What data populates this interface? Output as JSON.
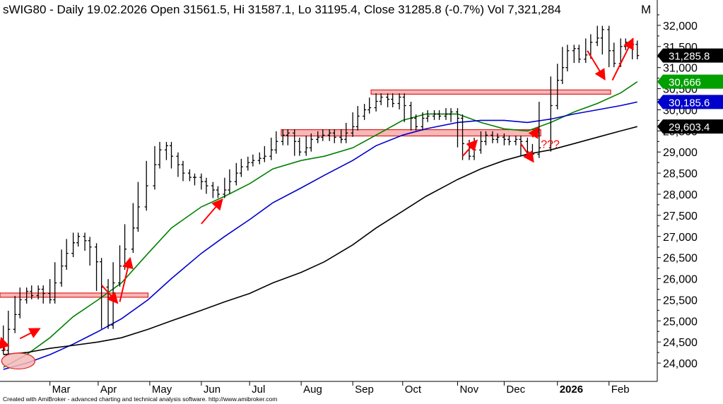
{
  "chart_data": {
    "type": "line",
    "title": "sWIG80 - Daily 19.02.2026 Open 31561.5, Hi 31587.1, Lo 31195.4, Close 31285.8 (-0.7%) Vol 7,321,284",
    "title_marker": "M",
    "title_marker_color": "#00a000",
    "ylim": [
      23650,
      32300
    ],
    "y_ticks": [
      {
        "value": 24000,
        "label": "24,000"
      },
      {
        "value": 24500,
        "label": "24,500"
      },
      {
        "value": 25000,
        "label": "25,000"
      },
      {
        "value": 25500,
        "label": "25,500"
      },
      {
        "value": 26000,
        "label": "26,000"
      },
      {
        "value": 26500,
        "label": "26,500"
      },
      {
        "value": 27000,
        "label": "27,000"
      },
      {
        "value": 27500,
        "label": "27,500"
      },
      {
        "value": 28000,
        "label": "28,000"
      },
      {
        "value": 28500,
        "label": "28,500"
      },
      {
        "value": 29000,
        "label": "29,000"
      },
      {
        "value": 29500,
        "label": "29,500"
      },
      {
        "value": 30000,
        "label": "30,000"
      },
      {
        "value": 30500,
        "label": "30,500"
      },
      {
        "value": 31000,
        "label": "31,000"
      },
      {
        "value": 31500,
        "label": "31,500"
      },
      {
        "value": 32000,
        "label": "32,000"
      }
    ],
    "xlim": [
      "2025-02-01",
      "2026-03-03"
    ],
    "x_ticks": [
      {
        "date": "2025-03-03",
        "label": "Mar"
      },
      {
        "date": "2025-04-01",
        "label": "Apr"
      },
      {
        "date": "2025-05-02",
        "label": "May"
      },
      {
        "date": "2025-06-02",
        "label": "Jun"
      },
      {
        "date": "2025-07-01",
        "label": "Jul"
      },
      {
        "date": "2025-08-01",
        "label": "Aug"
      },
      {
        "date": "2025-09-01",
        "label": "Sep"
      },
      {
        "date": "2025-10-01",
        "label": "Oct"
      },
      {
        "date": "2025-11-03",
        "label": "Nov"
      },
      {
        "date": "2025-12-01",
        "label": "Dec"
      },
      {
        "date": "2026-01-02",
        "label": "2026",
        "bold": true
      },
      {
        "date": "2026-02-02",
        "label": "Feb"
      }
    ],
    "price": [
      [
        "2025-02-03",
        24300
      ],
      [
        "2025-02-06",
        24800
      ],
      [
        "2025-02-10",
        25150
      ],
      [
        "2025-02-13",
        25500
      ],
      [
        "2025-02-17",
        25700
      ],
      [
        "2025-02-20",
        25600
      ],
      [
        "2025-02-24",
        25750
      ],
      [
        "2025-02-27",
        25650
      ],
      [
        "2025-03-03",
        25500
      ],
      [
        "2025-03-06",
        25900
      ],
      [
        "2025-03-10",
        26300
      ],
      [
        "2025-03-13",
        26600
      ],
      [
        "2025-03-17",
        26850
      ],
      [
        "2025-03-20",
        27000
      ],
      [
        "2025-03-24",
        26900
      ],
      [
        "2025-03-27",
        26750
      ],
      [
        "2025-03-31",
        26400
      ],
      [
        "2025-04-03",
        25800
      ],
      [
        "2025-04-07",
        24900
      ],
      [
        "2025-04-10",
        25900
      ],
      [
        "2025-04-14",
        26300
      ],
      [
        "2025-04-17",
        26700
      ],
      [
        "2025-04-22",
        27200
      ],
      [
        "2025-04-25",
        27700
      ],
      [
        "2025-04-30",
        28200
      ],
      [
        "2025-05-05",
        28700
      ],
      [
        "2025-05-08",
        29050
      ],
      [
        "2025-05-12",
        29150
      ],
      [
        "2025-05-15",
        28900
      ],
      [
        "2025-05-19",
        28700
      ],
      [
        "2025-05-22",
        28500
      ],
      [
        "2025-05-26",
        28400
      ],
      [
        "2025-05-29",
        28400
      ],
      [
        "2025-06-02",
        28300
      ],
      [
        "2025-06-05",
        28200
      ],
      [
        "2025-06-09",
        28100
      ],
      [
        "2025-06-12",
        28000
      ],
      [
        "2025-06-16",
        28100
      ],
      [
        "2025-06-19",
        28300
      ],
      [
        "2025-06-23",
        28500
      ],
      [
        "2025-06-26",
        28650
      ],
      [
        "2025-06-30",
        28750
      ],
      [
        "2025-07-03",
        28800
      ],
      [
        "2025-07-07",
        28850
      ],
      [
        "2025-07-10",
        28900
      ],
      [
        "2025-07-14",
        29050
      ],
      [
        "2025-07-17",
        29250
      ],
      [
        "2025-07-21",
        29400
      ],
      [
        "2025-07-24",
        29450
      ],
      [
        "2025-07-28",
        29250
      ],
      [
        "2025-07-31",
        29000
      ],
      [
        "2025-08-04",
        29100
      ],
      [
        "2025-08-07",
        29300
      ],
      [
        "2025-08-11",
        29350
      ],
      [
        "2025-08-14",
        29400
      ],
      [
        "2025-08-18",
        29450
      ],
      [
        "2025-08-21",
        29350
      ],
      [
        "2025-08-25",
        29300
      ],
      [
        "2025-08-28",
        29450
      ],
      [
        "2025-09-01",
        29600
      ],
      [
        "2025-09-04",
        29850
      ],
      [
        "2025-09-08",
        30000
      ],
      [
        "2025-09-11",
        30050
      ],
      [
        "2025-09-15",
        30200
      ],
      [
        "2025-09-18",
        30300
      ],
      [
        "2025-09-22",
        30250
      ],
      [
        "2025-09-25",
        30150
      ],
      [
        "2025-09-29",
        30300
      ],
      [
        "2025-10-02",
        30100
      ],
      [
        "2025-10-06",
        29800
      ],
      [
        "2025-10-09",
        29600
      ],
      [
        "2025-10-13",
        29800
      ],
      [
        "2025-10-16",
        29850
      ],
      [
        "2025-10-20",
        29900
      ],
      [
        "2025-10-23",
        29850
      ],
      [
        "2025-10-27",
        29900
      ],
      [
        "2025-10-30",
        29950
      ],
      [
        "2025-11-03",
        29800
      ],
      [
        "2025-11-06",
        29200
      ],
      [
        "2025-11-10",
        28900
      ],
      [
        "2025-11-13",
        29050
      ],
      [
        "2025-11-17",
        29250
      ],
      [
        "2025-11-20",
        29400
      ],
      [
        "2025-11-24",
        29300
      ],
      [
        "2025-11-27",
        29350
      ],
      [
        "2025-12-01",
        29300
      ],
      [
        "2025-12-04",
        29250
      ],
      [
        "2025-12-08",
        29300
      ],
      [
        "2025-12-11",
        29250
      ],
      [
        "2025-12-15",
        29000
      ],
      [
        "2025-12-18",
        28950
      ],
      [
        "2025-12-22",
        29100
      ],
      [
        "2025-12-29",
        30100
      ],
      [
        "2026-01-02",
        30700
      ],
      [
        "2026-01-05",
        31000
      ],
      [
        "2026-01-08",
        31400
      ],
      [
        "2026-01-12",
        31450
      ],
      [
        "2026-01-15",
        31200
      ],
      [
        "2026-01-19",
        31300
      ],
      [
        "2026-01-22",
        31600
      ],
      [
        "2026-01-26",
        31700
      ],
      [
        "2026-01-29",
        31900
      ],
      [
        "2026-02-02",
        31400
      ],
      [
        "2026-02-05",
        31100
      ],
      [
        "2026-02-09",
        31500
      ],
      [
        "2026-02-12",
        31600
      ],
      [
        "2026-02-16",
        31550
      ],
      [
        "2026-02-19",
        31285.8
      ]
    ],
    "series": [
      {
        "name": "",
        "color": "#008000",
        "last_label": "30,666",
        "points": [
          [
            "2025-02-03",
            23900
          ],
          [
            "2025-02-17",
            24200
          ],
          [
            "2025-03-03",
            24600
          ],
          [
            "2025-03-17",
            25100
          ],
          [
            "2025-04-01",
            25500
          ],
          [
            "2025-04-15",
            25900
          ],
          [
            "2025-05-01",
            26600
          ],
          [
            "2025-05-15",
            27200
          ],
          [
            "2025-06-02",
            27700
          ],
          [
            "2025-06-16",
            27950
          ],
          [
            "2025-07-01",
            28250
          ],
          [
            "2025-07-15",
            28600
          ],
          [
            "2025-08-01",
            28800
          ],
          [
            "2025-08-15",
            28900
          ],
          [
            "2025-09-01",
            29100
          ],
          [
            "2025-09-15",
            29400
          ],
          [
            "2025-10-01",
            29750
          ],
          [
            "2025-10-15",
            29900
          ],
          [
            "2025-11-03",
            29900
          ],
          [
            "2025-11-17",
            29700
          ],
          [
            "2025-12-01",
            29550
          ],
          [
            "2025-12-15",
            29500
          ],
          [
            "2025-12-29",
            29700
          ],
          [
            "2026-01-12",
            29950
          ],
          [
            "2026-01-26",
            30150
          ],
          [
            "2026-02-09",
            30400
          ],
          [
            "2026-02-19",
            30666
          ]
        ]
      },
      {
        "name": "",
        "color": "#0000cc",
        "last_label": "30,185.6",
        "points": [
          [
            "2025-02-03",
            23850
          ],
          [
            "2025-02-17",
            24000
          ],
          [
            "2025-03-03",
            24200
          ],
          [
            "2025-03-17",
            24450
          ],
          [
            "2025-04-01",
            24750
          ],
          [
            "2025-04-15",
            25050
          ],
          [
            "2025-05-01",
            25500
          ],
          [
            "2025-05-15",
            26000
          ],
          [
            "2025-06-02",
            26600
          ],
          [
            "2025-06-16",
            27000
          ],
          [
            "2025-07-01",
            27400
          ],
          [
            "2025-07-15",
            27800
          ],
          [
            "2025-08-01",
            28150
          ],
          [
            "2025-08-15",
            28450
          ],
          [
            "2025-09-01",
            28800
          ],
          [
            "2025-09-15",
            29150
          ],
          [
            "2025-10-01",
            29400
          ],
          [
            "2025-10-15",
            29550
          ],
          [
            "2025-11-03",
            29700
          ],
          [
            "2025-11-17",
            29750
          ],
          [
            "2025-12-01",
            29750
          ],
          [
            "2025-12-15",
            29700
          ],
          [
            "2025-12-29",
            29780
          ],
          [
            "2026-01-12",
            29900
          ],
          [
            "2026-01-26",
            30000
          ],
          [
            "2026-02-09",
            30100
          ],
          [
            "2026-02-19",
            30185.6
          ]
        ]
      },
      {
        "name": "",
        "color": "#000000",
        "last_label": "29,603.4",
        "points": [
          [
            "2025-02-03",
            24200
          ],
          [
            "2025-02-17",
            24250
          ],
          [
            "2025-03-03",
            24350
          ],
          [
            "2025-03-17",
            24420
          ],
          [
            "2025-04-01",
            24500
          ],
          [
            "2025-04-15",
            24600
          ],
          [
            "2025-05-01",
            24800
          ],
          [
            "2025-05-15",
            25000
          ],
          [
            "2025-06-02",
            25250
          ],
          [
            "2025-06-16",
            25450
          ],
          [
            "2025-07-01",
            25650
          ],
          [
            "2025-07-15",
            25900
          ],
          [
            "2025-08-01",
            26150
          ],
          [
            "2025-08-15",
            26400
          ],
          [
            "2025-09-01",
            26800
          ],
          [
            "2025-09-15",
            27200
          ],
          [
            "2025-10-01",
            27600
          ],
          [
            "2025-10-15",
            27950
          ],
          [
            "2025-11-03",
            28350
          ],
          [
            "2025-11-17",
            28600
          ],
          [
            "2025-12-01",
            28800
          ],
          [
            "2025-12-15",
            28950
          ],
          [
            "2025-12-29",
            29050
          ],
          [
            "2026-01-12",
            29200
          ],
          [
            "2026-01-26",
            29350
          ],
          [
            "2026-02-09",
            29500
          ],
          [
            "2026-02-19",
            29603.4
          ]
        ]
      }
    ],
    "last_price_label": "31,285.8",
    "zones": [
      {
        "from": "2025-02-01",
        "to": "2025-05-01",
        "low": 25580,
        "high": 25660
      },
      {
        "from": "2025-07-20",
        "to": "2025-12-23",
        "low": 29380,
        "high": 29530
      },
      {
        "from": "2025-09-12",
        "to": "2026-02-03",
        "low": 30380,
        "high": 30470
      }
    ],
    "annotations": [
      {
        "type": "arrow",
        "from": [
          "2025-02-13",
          24580
        ],
        "to": [
          "2025-02-24",
          24800
        ]
      },
      {
        "type": "arrow",
        "from": [
          "2025-02-04",
          24300
        ],
        "to": [
          "2025-02-02",
          24560
        ]
      },
      {
        "type": "arrow",
        "from": [
          "2025-04-03",
          25850
        ],
        "to": [
          "2025-04-12",
          25450
        ]
      },
      {
        "type": "arrow",
        "from": [
          "2025-04-14",
          25450
        ],
        "to": [
          "2025-04-20",
          26450
        ]
      },
      {
        "type": "arrow",
        "from": [
          "2025-06-02",
          27300
        ],
        "to": [
          "2025-06-14",
          27850
        ]
      },
      {
        "type": "arrow",
        "from": [
          "2025-11-06",
          28900
        ],
        "to": [
          "2025-11-14",
          29250
        ]
      },
      {
        "type": "arrow",
        "from": [
          "2025-12-11",
          29200
        ],
        "to": [
          "2025-12-18",
          28800
        ]
      },
      {
        "type": "arrow",
        "from": [
          "2025-12-18",
          29350
        ],
        "to": [
          "2025-12-21",
          29550
        ]
      },
      {
        "type": "arrow",
        "from": [
          "2026-01-20",
          31400
        ],
        "to": [
          "2026-01-30",
          30750
        ]
      },
      {
        "type": "arrow",
        "from": [
          "2026-02-04",
          30700
        ],
        "to": [
          "2026-02-16",
          31650
        ]
      },
      {
        "type": "text",
        "at": [
          "2025-12-23",
          29100
        ],
        "text": "???",
        "color": "#ff0000"
      },
      {
        "type": "ellipse",
        "center": [
          "2025-02-12",
          24050
        ],
        "days": 10,
        "value_radius": 190
      }
    ]
  },
  "footer": {
    "credit": "Created with AmiBroker - advanced charting and technical analysis software. http://www.amibroker.com"
  }
}
